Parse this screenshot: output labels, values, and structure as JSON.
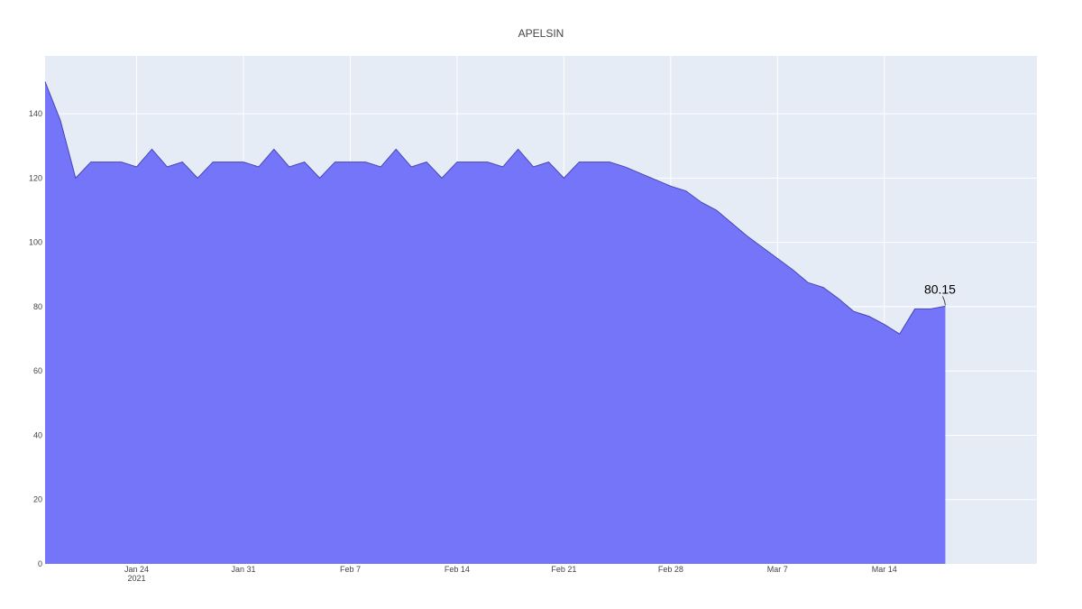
{
  "chart_data": {
    "type": "area",
    "title": "APELSIN",
    "xlabel": "",
    "ylabel": "",
    "x_axis": {
      "ticks": [
        "2021-01-24",
        "2021-01-31",
        "2021-02-07",
        "2021-02-14",
        "2021-02-21",
        "2021-02-28",
        "2021-03-07",
        "2021-03-14"
      ],
      "tick_labels": [
        "Jan 24",
        "Jan 31",
        "Feb 7",
        "Feb 14",
        "Feb 21",
        "Feb 28",
        "Mar 7",
        "Mar 14"
      ],
      "year_label": "2021",
      "range": [
        "2021-01-18",
        "2021-03-24"
      ]
    },
    "y_axis": {
      "ticks": [
        0,
        20,
        40,
        60,
        80,
        100,
        120,
        140
      ],
      "range": [
        0,
        158
      ]
    },
    "grid": true,
    "colors": {
      "fill": "#7575fa",
      "line": "#4646b4",
      "plot_bg": "#e5ecf6",
      "grid": "#ffffff"
    },
    "series": [
      {
        "x": [
          "2021-01-18",
          "2021-01-19",
          "2021-01-20",
          "2021-01-21",
          "2021-01-22",
          "2021-01-23",
          "2021-01-24",
          "2021-01-25",
          "2021-01-26",
          "2021-01-27",
          "2021-01-28",
          "2021-01-29",
          "2021-01-30",
          "2021-01-31",
          "2021-02-01",
          "2021-02-02",
          "2021-02-03",
          "2021-02-04",
          "2021-02-05",
          "2021-02-06",
          "2021-02-07",
          "2021-02-08",
          "2021-02-09",
          "2021-02-10",
          "2021-02-11",
          "2021-02-12",
          "2021-02-13",
          "2021-02-14",
          "2021-02-15",
          "2021-02-16",
          "2021-02-17",
          "2021-02-18",
          "2021-02-19",
          "2021-02-20",
          "2021-02-21",
          "2021-02-22",
          "2021-02-23",
          "2021-02-24",
          "2021-02-25",
          "2021-02-26",
          "2021-02-27",
          "2021-02-28",
          "2021-03-01",
          "2021-03-02",
          "2021-03-03",
          "2021-03-04",
          "2021-03-05",
          "2021-03-06",
          "2021-03-07",
          "2021-03-08",
          "2021-03-09",
          "2021-03-10",
          "2021-03-11",
          "2021-03-12",
          "2021-03-13",
          "2021-03-14",
          "2021-03-15",
          "2021-03-16",
          "2021-03-17",
          "2021-03-18"
        ],
        "y": [
          150,
          138,
          120,
          125,
          125,
          125,
          123.5,
          129,
          123.5,
          125,
          120,
          125,
          125,
          125,
          123.5,
          129,
          123.5,
          125,
          120,
          125,
          125,
          125,
          123.5,
          129,
          123.5,
          125,
          120,
          125,
          125,
          125,
          123.5,
          129,
          123.5,
          125,
          120,
          125,
          125,
          125,
          123.5,
          121.5,
          119.5,
          117.5,
          116,
          112.5,
          110,
          106,
          102,
          98.5,
          95,
          91.5,
          87.5,
          86,
          82.5,
          78.5,
          77,
          74.5,
          71.5,
          79.3,
          79.3,
          80.15
        ]
      }
    ],
    "annotations": [
      {
        "x": "2021-03-18",
        "y": 80.15,
        "text": "80.15"
      }
    ]
  }
}
